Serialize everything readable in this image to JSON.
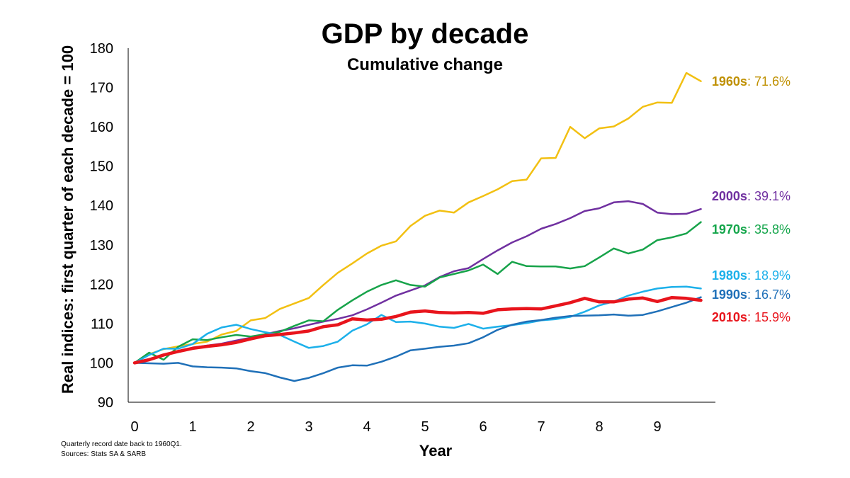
{
  "chart_data": {
    "type": "line",
    "title": "GDP by decade",
    "subtitle": "Cumulative change",
    "xlabel": "Year",
    "ylabel": "Real indices: first quarter of each decade = 100",
    "xlim": [
      0,
      10
    ],
    "ylim": [
      90,
      180
    ],
    "x_ticks": [
      0,
      1,
      2,
      3,
      4,
      5,
      6,
      7,
      8,
      9
    ],
    "y_ticks": [
      90,
      100,
      110,
      120,
      130,
      140,
      150,
      160,
      170,
      180
    ],
    "grid": false,
    "legend": "none",
    "series": [
      {
        "name": "1960s",
        "color": "#f2c012",
        "label_color": "#bf9000",
        "change": "71.6%",
        "width": 2.5,
        "x": [
          0,
          0.25,
          0.5,
          0.75,
          1,
          1.25,
          1.5,
          1.75,
          2,
          2.25,
          2.5,
          2.75,
          3,
          3.25,
          3.5,
          3.75,
          4,
          4.25,
          4.5,
          4.75,
          5,
          5.25,
          5.5,
          5.75,
          6,
          6.25,
          6.5,
          6.75,
          7,
          7.25,
          7.5,
          7.75,
          8,
          8.25,
          8.5,
          8.75,
          9,
          9.25,
          9.5,
          9.75
        ],
        "y": [
          100,
          102.2,
          103.5,
          104.2,
          104.8,
          105.4,
          107.2,
          108.1,
          110.8,
          111.4,
          113.7,
          115.1,
          116.5,
          119.8,
          122.9,
          125.3,
          127.8,
          129.8,
          130.9,
          134.8,
          137.4,
          138.7,
          138.2,
          140.8,
          142.4,
          144.1,
          146.2,
          146.6,
          152,
          152.1,
          160,
          157.1,
          159.6,
          160.1,
          162.1,
          165.1,
          166.2,
          166.1,
          173.7,
          171.6
        ]
      },
      {
        "name": "2000s",
        "color": "#7030a0",
        "label_color": "#7030a0",
        "change": "39.1%",
        "width": 2.5,
        "x": [
          0,
          0.25,
          0.5,
          0.75,
          1,
          1.25,
          1.5,
          1.75,
          2,
          2.25,
          2.5,
          2.75,
          3,
          3.25,
          3.5,
          3.75,
          4,
          4.25,
          4.5,
          4.75,
          5,
          5.25,
          5.5,
          5.75,
          6,
          6.25,
          6.5,
          6.75,
          7,
          7.25,
          7.5,
          7.75,
          8,
          8.25,
          8.5,
          8.75,
          9,
          9.25,
          9.5,
          9.75
        ],
        "y": [
          100,
          101,
          102,
          103,
          103.9,
          104.4,
          104.9,
          105.7,
          106.4,
          107.3,
          108.1,
          108.8,
          109.7,
          110.5,
          111.2,
          112.1,
          113.6,
          115.3,
          117.1,
          118.4,
          119.7,
          121.8,
          123.3,
          124.1,
          126.4,
          128.6,
          130.6,
          132.2,
          134.1,
          135.3,
          136.8,
          138.6,
          139.3,
          140.8,
          141.1,
          140.4,
          138.2,
          137.8,
          137.9,
          139.1
        ]
      },
      {
        "name": "1970s",
        "color": "#17a34a",
        "label_color": "#13a54a",
        "change": "35.8%",
        "width": 2.5,
        "x": [
          0,
          0.25,
          0.5,
          0.75,
          1,
          1.25,
          1.5,
          1.75,
          2,
          2.25,
          2.5,
          2.75,
          3,
          3.25,
          3.5,
          3.75,
          4,
          4.25,
          4.5,
          4.75,
          5,
          5.25,
          5.5,
          5.75,
          6,
          6.25,
          6.5,
          6.75,
          7,
          7.25,
          7.5,
          7.75,
          8,
          8.25,
          8.5,
          8.75,
          9,
          9.25,
          9.5,
          9.75
        ],
        "y": [
          100,
          102.6,
          100.8,
          104.1,
          106,
          105.8,
          106.5,
          107.1,
          106.7,
          107.3,
          107.9,
          109.4,
          110.8,
          110.6,
          113.5,
          115.9,
          118.1,
          119.8,
          121,
          119.8,
          119.4,
          121.7,
          122.6,
          123.5,
          125,
          122.6,
          125.7,
          124.6,
          124.5,
          124.5,
          124,
          124.6,
          126.8,
          129.1,
          127.8,
          128.8,
          131.2,
          131.9,
          132.9,
          135.8
        ]
      },
      {
        "name": "1980s",
        "color": "#1cb0ea",
        "label_color": "#1cb0ea",
        "change": "18.9%",
        "width": 2.5,
        "x": [
          0,
          0.25,
          0.5,
          0.75,
          1,
          1.25,
          1.5,
          1.75,
          2,
          2.25,
          2.5,
          2.75,
          3,
          3.25,
          3.5,
          3.75,
          4,
          4.25,
          4.5,
          4.75,
          5,
          5.25,
          5.5,
          5.75,
          6,
          6.25,
          6.5,
          6.75,
          7,
          7.25,
          7.5,
          7.75,
          8,
          8.25,
          8.5,
          8.75,
          9,
          9.25,
          9.5,
          9.75
        ],
        "y": [
          100,
          102,
          103.6,
          103.6,
          104.8,
          107.4,
          109,
          109.7,
          108.6,
          107.8,
          107.1,
          105.4,
          103.8,
          104.3,
          105.4,
          108.2,
          109.8,
          112.2,
          110.4,
          110.5,
          110,
          109.2,
          108.9,
          109.9,
          108.7,
          109.2,
          109.6,
          110.1,
          110.8,
          111.1,
          111.7,
          113,
          114.6,
          115.6,
          117.1,
          118.1,
          118.9,
          119.3,
          119.4,
          118.9
        ]
      },
      {
        "name": "1990s",
        "color": "#1f70b8",
        "label_color": "#1f70b8",
        "change": "16.7%",
        "width": 2.5,
        "x": [
          0,
          0.25,
          0.5,
          0.75,
          1,
          1.25,
          1.5,
          1.75,
          2,
          2.25,
          2.5,
          2.75,
          3,
          3.25,
          3.5,
          3.75,
          4,
          4.25,
          4.5,
          4.75,
          5,
          5.25,
          5.5,
          5.75,
          6,
          6.25,
          6.5,
          6.75,
          7,
          7.25,
          7.5,
          7.75,
          8,
          8.25,
          8.5,
          8.75,
          9,
          9.25,
          9.5,
          9.75
        ],
        "y": [
          100,
          99.9,
          99.8,
          100,
          99.1,
          98.9,
          98.8,
          98.6,
          97.9,
          97.4,
          96.3,
          95.4,
          96.2,
          97.4,
          98.8,
          99.4,
          99.3,
          100.3,
          101.6,
          103.2,
          103.6,
          104.1,
          104.4,
          105,
          106.5,
          108.4,
          109.7,
          110.5,
          110.9,
          111.5,
          111.9,
          112,
          112.1,
          112.3,
          112,
          112.2,
          113.1,
          114.2,
          115.3,
          116.7
        ]
      },
      {
        "name": "2010s",
        "color": "#e8141c",
        "label_color": "#e8141c",
        "change": "15.9%",
        "width": 4.5,
        "x": [
          0,
          0.25,
          0.5,
          0.75,
          1,
          1.25,
          1.5,
          1.75,
          2,
          2.25,
          2.5,
          2.75,
          3,
          3.25,
          3.5,
          3.75,
          4,
          4.25,
          4.5,
          4.75,
          5,
          5.25,
          5.5,
          5.75,
          6,
          6.25,
          6.5,
          6.75,
          7,
          7.25,
          7.5,
          7.75,
          8,
          8.25,
          8.5,
          8.75,
          9,
          9.25,
          9.5,
          9.75
        ],
        "y": [
          100,
          100.8,
          102,
          102.9,
          103.7,
          104.2,
          104.6,
          105.2,
          106.1,
          106.9,
          107.2,
          107.6,
          108.1,
          109.2,
          109.7,
          111.2,
          110.9,
          111.1,
          111.8,
          112.9,
          113.2,
          112.8,
          112.7,
          112.8,
          112.6,
          113.5,
          113.7,
          113.8,
          113.7,
          114.5,
          115.3,
          116.4,
          115.5,
          115.5,
          116.2,
          116.5,
          115.6,
          116.6,
          116.4,
          115.9
        ]
      }
    ]
  },
  "notes": {
    "line1": "Quarterly record date back to 1960Q1.",
    "line2": "Sources: Stats SA & SARB"
  }
}
